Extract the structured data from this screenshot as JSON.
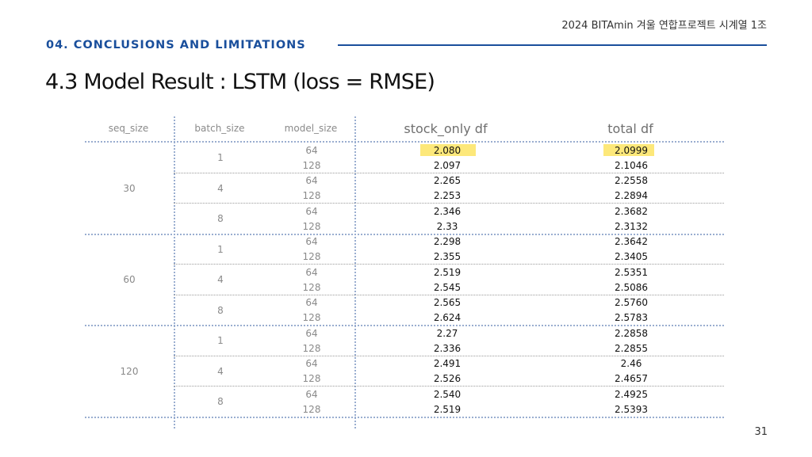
{
  "header": {
    "org": "2024 BITAmin 겨울 연합프로젝트 시계열 1조",
    "section": "04. CONCLUSIONS AND LIMITATIONS",
    "title": "4.3 Model Result : LSTM (loss = RMSE)",
    "page_number": "31"
  },
  "table": {
    "columns": [
      "seq_size",
      "batch_size",
      "model_size",
      "stock_only df",
      "total df"
    ],
    "highlight_color": "#fde87a",
    "highlighted": [
      "2.080",
      "2.0999"
    ],
    "groups": [
      {
        "seq": "30",
        "batches": [
          {
            "batch": "1",
            "rows": [
              {
                "model": "64",
                "stock": "2.080",
                "total": "2.0999"
              },
              {
                "model": "128",
                "stock": "2.097",
                "total": "2.1046"
              }
            ]
          },
          {
            "batch": "4",
            "rows": [
              {
                "model": "64",
                "stock": "2.265",
                "total": "2.2558"
              },
              {
                "model": "128",
                "stock": "2.253",
                "total": "2.2894"
              }
            ]
          },
          {
            "batch": "8",
            "rows": [
              {
                "model": "64",
                "stock": "2.346",
                "total": "2.3682"
              },
              {
                "model": "128",
                "stock": "2.33",
                "total": "2.3132"
              }
            ]
          }
        ]
      },
      {
        "seq": "60",
        "batches": [
          {
            "batch": "1",
            "rows": [
              {
                "model": "64",
                "stock": "2.298",
                "total": "2.3642"
              },
              {
                "model": "128",
                "stock": "2.355",
                "total": "2.3405"
              }
            ]
          },
          {
            "batch": "4",
            "rows": [
              {
                "model": "64",
                "stock": "2.519",
                "total": "2.5351"
              },
              {
                "model": "128",
                "stock": "2.545",
                "total": "2.5086"
              }
            ]
          },
          {
            "batch": "8",
            "rows": [
              {
                "model": "64",
                "stock": "2.565",
                "total": "2.5760"
              },
              {
                "model": "128",
                "stock": "2.624",
                "total": "2.5783"
              }
            ]
          }
        ]
      },
      {
        "seq": "120",
        "batches": [
          {
            "batch": "1",
            "rows": [
              {
                "model": "64",
                "stock": "2.27",
                "total": "2.2858"
              },
              {
                "model": "128",
                "stock": "2.336",
                "total": "2.2855"
              }
            ]
          },
          {
            "batch": "4",
            "rows": [
              {
                "model": "64",
                "stock": "2.491",
                "total": "2.46"
              },
              {
                "model": "128",
                "stock": "2.526",
                "total": "2.4657"
              }
            ]
          },
          {
            "batch": "8",
            "rows": [
              {
                "model": "64",
                "stock": "2.540",
                "total": "2.4925"
              },
              {
                "model": "128",
                "stock": "2.519",
                "total": "2.5393"
              }
            ]
          }
        ]
      }
    ]
  }
}
